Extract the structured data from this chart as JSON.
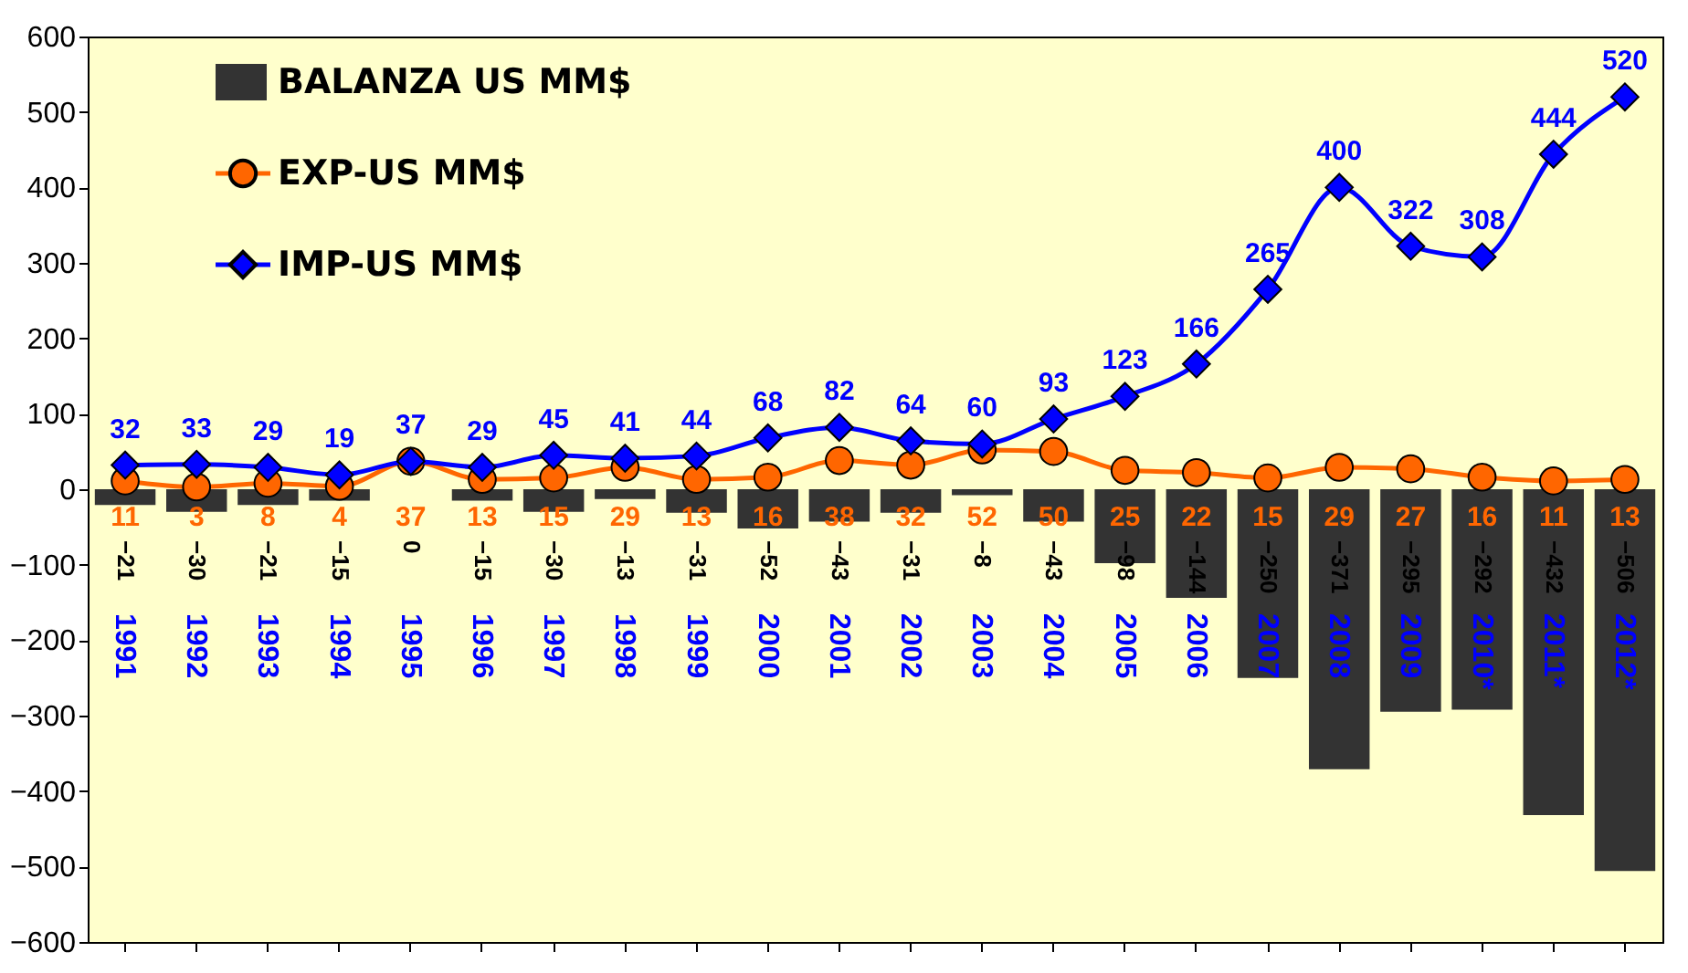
{
  "chart_data": {
    "type": "bar",
    "categories": [
      "1991",
      "1992",
      "1993",
      "1994",
      "1995",
      "1996",
      "1997",
      "1998",
      "1999",
      "2000",
      "2001",
      "2002",
      "2003",
      "2004",
      "2005",
      "2006",
      "2007",
      "2008",
      "2009",
      "2010*",
      "2011*",
      "2012*"
    ],
    "series": [
      {
        "name": "BALANZA US MM$",
        "color": "#333333",
        "values": [
          -21,
          -30,
          -21,
          -15,
          0,
          -15,
          -30,
          -13,
          -31,
          -52,
          -43,
          -31,
          -8,
          -43,
          -98,
          -144,
          -250,
          -371,
          -295,
          -292,
          -432,
          -506
        ]
      },
      {
        "name": "EXP-US MM$",
        "type": "line",
        "color": "#ff6600",
        "marker": "circle",
        "values": [
          11,
          3,
          8,
          4,
          37,
          13,
          15,
          29,
          13,
          16,
          38,
          32,
          52,
          50,
          25,
          22,
          15,
          29,
          27,
          16,
          11,
          13
        ]
      },
      {
        "name": "IMP-US MM$",
        "type": "line",
        "color": "#0000ff",
        "marker": "diamond",
        "values": [
          32,
          33,
          29,
          19,
          37,
          29,
          45,
          41,
          44,
          68,
          82,
          64,
          60,
          93,
          123,
          166,
          265,
          400,
          322,
          308,
          444,
          520
        ]
      }
    ],
    "ylim": [
      -600,
      600
    ],
    "yticks": [
      -600,
      -500,
      -400,
      -300,
      -200,
      -100,
      0,
      100,
      200,
      300,
      400,
      500,
      600
    ],
    "data_labels": true,
    "legend": "top left",
    "grid": false
  }
}
